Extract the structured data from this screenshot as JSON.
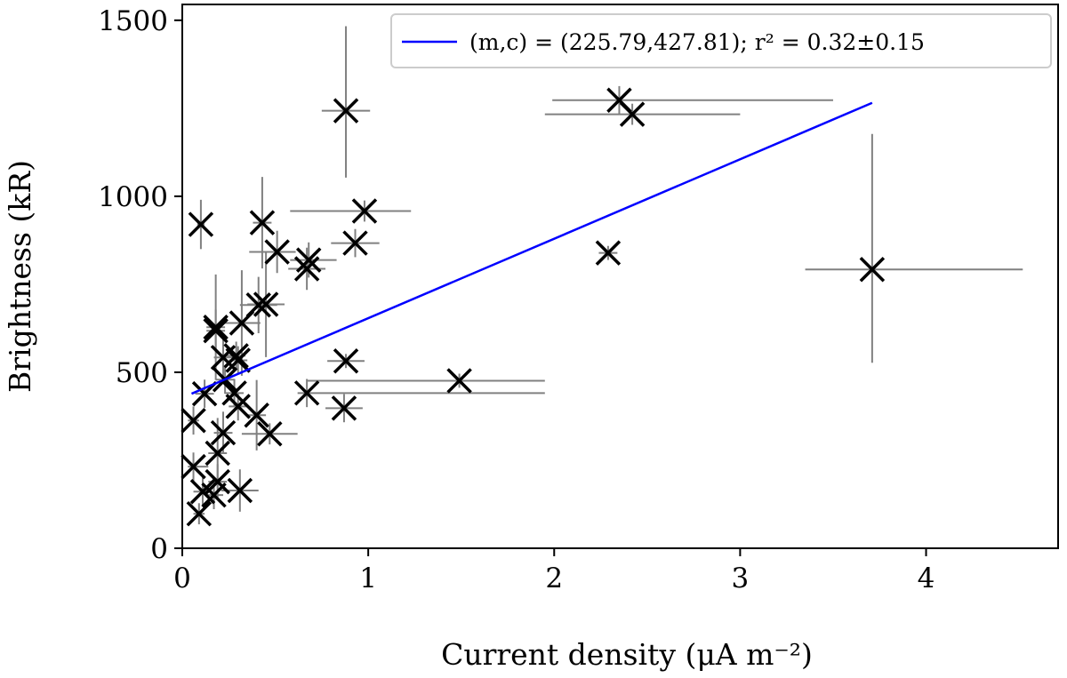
{
  "chart_data": {
    "type": "scatter",
    "xlabel": "Current density (μA m⁻²)",
    "ylabel": "Brightness (kR)",
    "xlim": [
      0,
      4.71
    ],
    "ylim": [
      0,
      1545
    ],
    "xticks": [
      "0",
      "1",
      "2",
      "3",
      "4"
    ],
    "yticks": [
      "0",
      "500",
      "1000",
      "1500"
    ],
    "xtick_values": [
      0,
      1,
      2,
      3,
      4
    ],
    "ytick_values": [
      0,
      500,
      1000,
      1500
    ],
    "grid": false,
    "legend_position": "top-right",
    "marker_color": "#000000",
    "errorbar_color": "#808080",
    "fit_color": "#0000ff",
    "fit": {
      "m": 225.79,
      "c": 427.81,
      "x_range": [
        0.05,
        3.71
      ],
      "label": "(m,c) = (225.79,427.81); r² = 0.32±0.15"
    },
    "points": [
      {
        "x": 0.1,
        "y": 920,
        "xerr": [
          0.02,
          0.02
        ],
        "yerr": [
          70,
          70
        ]
      },
      {
        "x": 0.43,
        "y": 925,
        "xerr": [
          0.05,
          0.05
        ],
        "yerr": [
          130,
          130
        ]
      },
      {
        "x": 0.51,
        "y": 842,
        "xerr": [
          0.15,
          0.1
        ],
        "yerr": [
          60,
          60
        ]
      },
      {
        "x": 0.68,
        "y": 819,
        "xerr": [
          0.1,
          0.15
        ],
        "yerr": [
          50,
          50
        ]
      },
      {
        "x": 0.67,
        "y": 794,
        "xerr": [
          0.1,
          0.1
        ],
        "yerr": [
          60,
          60
        ]
      },
      {
        "x": 0.93,
        "y": 867,
        "xerr": [
          0.13,
          0.13
        ],
        "yerr": [
          40,
          40
        ]
      },
      {
        "x": 0.98,
        "y": 958,
        "xerr": [
          0.4,
          0.25
        ],
        "yerr": [
          30,
          30
        ]
      },
      {
        "x": 0.45,
        "y": 693,
        "xerr": [
          0.1,
          0.1
        ],
        "yerr": [
          150,
          150
        ]
      },
      {
        "x": 0.41,
        "y": 691,
        "xerr": [
          0.1,
          0.1
        ],
        "yerr": [
          80,
          80
        ]
      },
      {
        "x": 0.32,
        "y": 640,
        "xerr": [
          0.1,
          0.1
        ],
        "yerr": [
          150,
          150
        ]
      },
      {
        "x": 0.18,
        "y": 628,
        "xerr": [
          0.05,
          0.05
        ],
        "yerr": [
          150,
          150
        ]
      },
      {
        "x": 0.18,
        "y": 618,
        "xerr": [
          0.05,
          0.05
        ],
        "yerr": [
          60,
          60
        ]
      },
      {
        "x": 0.22,
        "y": 542,
        "xerr": [
          0.05,
          0.05
        ],
        "yerr": [
          60,
          60
        ]
      },
      {
        "x": 0.29,
        "y": 547,
        "xerr": [
          0.05,
          0.05
        ],
        "yerr": [
          40,
          40
        ]
      },
      {
        "x": 0.3,
        "y": 534,
        "xerr": [
          0.05,
          0.05
        ],
        "yerr": [
          40,
          40
        ]
      },
      {
        "x": 0.88,
        "y": 532,
        "xerr": [
          0.1,
          0.1
        ],
        "yerr": [
          20,
          20
        ]
      },
      {
        "x": 0.23,
        "y": 479,
        "xerr": [
          0.05,
          0.05
        ],
        "yerr": [
          40,
          40
        ]
      },
      {
        "x": 0.12,
        "y": 439,
        "xerr": [
          0.05,
          0.05
        ],
        "yerr": [
          40,
          40
        ]
      },
      {
        "x": 0.28,
        "y": 441,
        "xerr": [
          0.05,
          0.05
        ],
        "yerr": [
          40,
          40
        ]
      },
      {
        "x": 0.3,
        "y": 403,
        "xerr": [
          0.05,
          0.05
        ],
        "yerr": [
          40,
          40
        ]
      },
      {
        "x": 0.67,
        "y": 441,
        "xerr": [
          0.05,
          1.28
        ],
        "yerr": [
          40,
          40
        ]
      },
      {
        "x": 0.4,
        "y": 378,
        "xerr": [
          0.05,
          0.05
        ],
        "yerr": [
          100,
          100
        ]
      },
      {
        "x": 0.87,
        "y": 398,
        "xerr": [
          0.1,
          0.1
        ],
        "yerr": [
          40,
          40
        ]
      },
      {
        "x": 0.47,
        "y": 325,
        "xerr": [
          0.15,
          0.15
        ],
        "yerr": [
          30,
          30
        ]
      },
      {
        "x": 0.06,
        "y": 363,
        "xerr": [
          0.03,
          0.03
        ],
        "yerr": [
          40,
          40
        ]
      },
      {
        "x": 0.22,
        "y": 328,
        "xerr": [
          0.05,
          0.05
        ],
        "yerr": [
          60,
          60
        ]
      },
      {
        "x": 0.19,
        "y": 270,
        "xerr": [
          0.05,
          0.05
        ],
        "yerr": [
          100,
          100
        ]
      },
      {
        "x": 0.06,
        "y": 232,
        "xerr": [
          0.03,
          0.08
        ],
        "yerr": [
          40,
          40
        ]
      },
      {
        "x": 0.19,
        "y": 189,
        "xerr": [
          0.05,
          0.05
        ],
        "yerr": [
          50,
          50
        ]
      },
      {
        "x": 0.11,
        "y": 161,
        "xerr": [
          0.05,
          0.05
        ],
        "yerr": [
          40,
          40
        ]
      },
      {
        "x": 0.17,
        "y": 151,
        "xerr": [
          0.05,
          0.05
        ],
        "yerr": [
          40,
          40
        ]
      },
      {
        "x": 0.31,
        "y": 164,
        "xerr": [
          0.1,
          0.1
        ],
        "yerr": [
          60,
          60
        ]
      },
      {
        "x": 0.09,
        "y": 98,
        "xerr": [
          0.03,
          0.03
        ],
        "yerr": [
          30,
          30
        ]
      },
      {
        "x": 0.88,
        "y": 1243,
        "xerr": [
          0.13,
          0.13
        ],
        "yerr": [
          190,
          240
        ]
      },
      {
        "x": 2.35,
        "y": 1273,
        "xerr": [
          0.36,
          1.15
        ],
        "yerr": [
          40,
          40
        ]
      },
      {
        "x": 2.42,
        "y": 1233,
        "xerr": [
          0.47,
          0.58
        ],
        "yerr": [
          30,
          30
        ]
      },
      {
        "x": 3.71,
        "y": 792,
        "xerr": [
          0.36,
          0.81
        ],
        "yerr": [
          265,
          385
        ]
      },
      {
        "x": 2.29,
        "y": 839,
        "xerr": [
          0.05,
          0.05
        ],
        "yerr": [
          20,
          20
        ]
      },
      {
        "x": 1.49,
        "y": 476,
        "xerr": [
          0.82,
          0.46
        ],
        "yerr": [
          20,
          20
        ]
      }
    ]
  }
}
